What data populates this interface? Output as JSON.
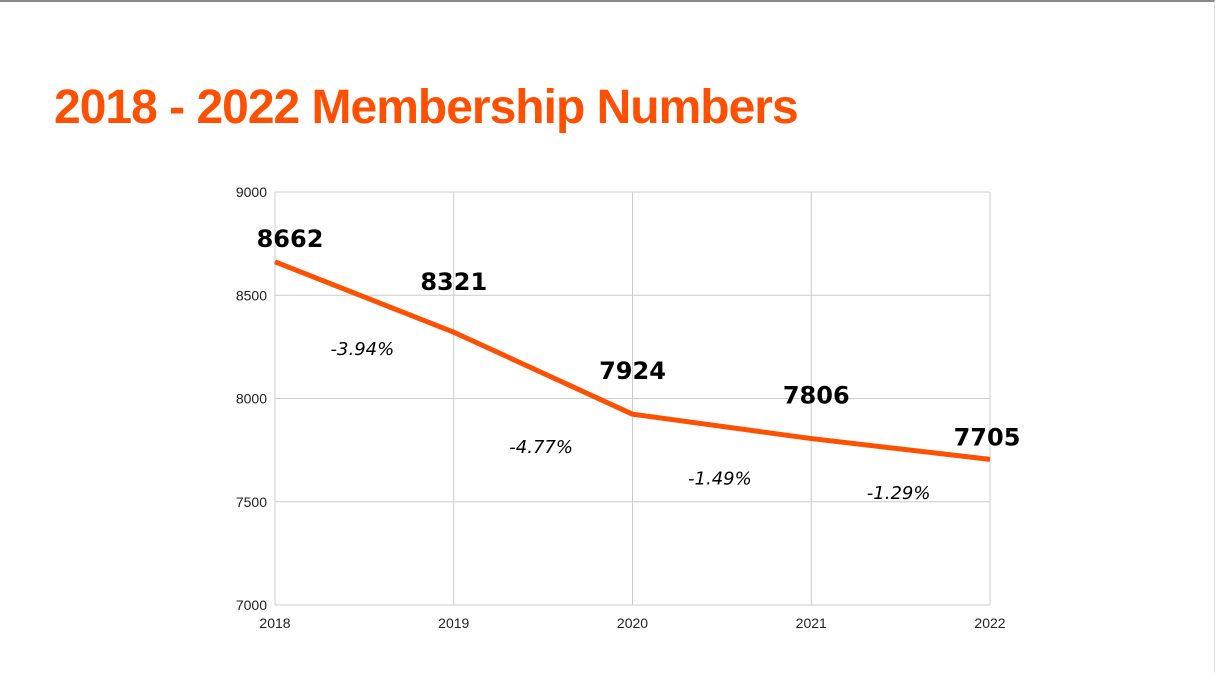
{
  "slide": {
    "title": "2018 - 2022 Membership Numbers"
  },
  "colors": {
    "accent": "#ff4f00",
    "grid": "#cccccc",
    "text": "#000000"
  },
  "chart_data": {
    "type": "line",
    "title": "",
    "xlabel": "",
    "ylabel": "",
    "categories": [
      "2018",
      "2019",
      "2020",
      "2021",
      "2022"
    ],
    "series": [
      {
        "values": [
          8662,
          8321,
          7924,
          7806,
          7705
        ],
        "color": "#ff4f00"
      }
    ],
    "data_labels": [
      "8662",
      "8321",
      "7924",
      "7806",
      "7705"
    ],
    "change_labels": [
      "-3.94%",
      "-4.77%",
      "-1.49%",
      "-1.29%"
    ],
    "ylim": [
      7000,
      9000
    ],
    "yticks": [
      7000,
      7500,
      8000,
      8500,
      9000
    ],
    "grid": true,
    "legend": "none"
  }
}
